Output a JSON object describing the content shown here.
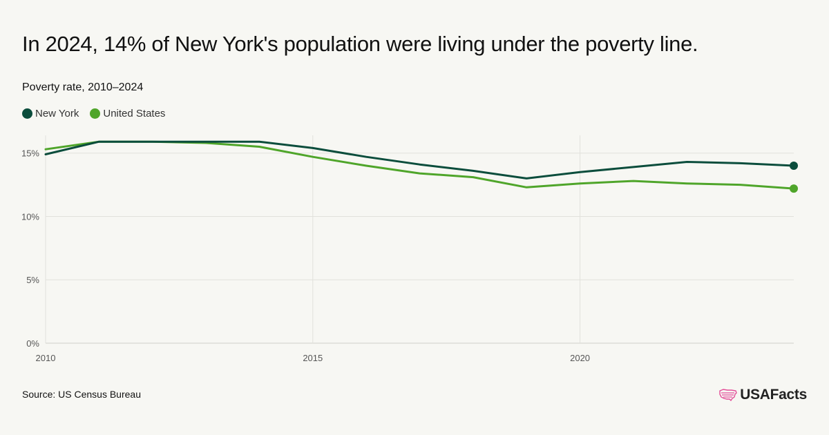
{
  "header": {
    "title": "In 2024, 14% of New York's population were living under the poverty line.",
    "subtitle": "Poverty rate, 2010–2024"
  },
  "legend": [
    {
      "label": "New York",
      "color": "#0b4d3c"
    },
    {
      "label": "United States",
      "color": "#4fa52a"
    }
  ],
  "footer": {
    "source": "Source: US Census Bureau",
    "brand": "USAFacts",
    "brand_color": "#e34d98"
  },
  "chart_data": {
    "type": "line",
    "x": [
      2010,
      2011,
      2012,
      2013,
      2014,
      2015,
      2016,
      2017,
      2018,
      2019,
      2020,
      2021,
      2022,
      2023,
      2024
    ],
    "series": [
      {
        "name": "New York",
        "color": "#0b4d3c",
        "values": [
          14.9,
          15.9,
          15.9,
          15.9,
          15.9,
          15.4,
          14.7,
          14.1,
          13.6,
          13.0,
          13.5,
          13.9,
          14.3,
          14.2,
          14.0
        ]
      },
      {
        "name": "United States",
        "color": "#4fa52a",
        "values": [
          15.3,
          15.9,
          15.9,
          15.8,
          15.5,
          14.7,
          14.0,
          13.4,
          13.1,
          12.3,
          12.6,
          12.8,
          12.6,
          12.5,
          12.2
        ]
      }
    ],
    "xticks": [
      {
        "value": 2010,
        "label": "2010"
      },
      {
        "value": 2015,
        "label": "2015"
      },
      {
        "value": 2020,
        "label": "2020"
      }
    ],
    "yticks": [
      {
        "value": 0,
        "label": "0%"
      },
      {
        "value": 5,
        "label": "5%"
      },
      {
        "value": 10,
        "label": "10%"
      },
      {
        "value": 15,
        "label": "15%"
      }
    ],
    "xlim": [
      2010,
      2024
    ],
    "ylim": [
      0,
      16.4
    ],
    "grid": true,
    "legend_position": "top-left",
    "end_markers": true
  }
}
